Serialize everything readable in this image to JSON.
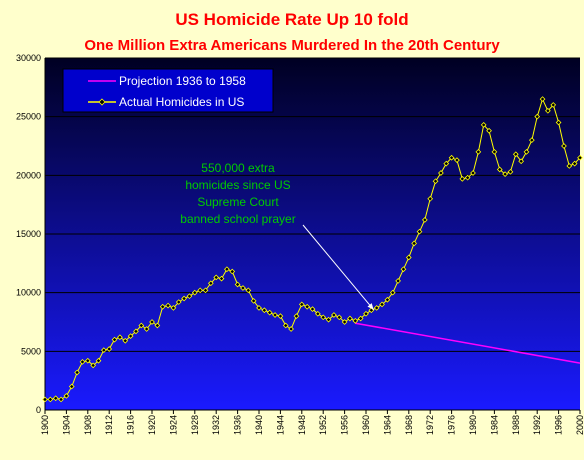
{
  "chart_data": {
    "type": "line",
    "title": "US Homicide Rate Up 10 fold",
    "subtitle": "One Million Extra Americans Murdered In the 20th Century",
    "xlabel": "",
    "ylabel": "",
    "ylim": [
      0,
      30000
    ],
    "yticks": [
      "0",
      "5000",
      "10000",
      "15000",
      "20000",
      "25000",
      "30000"
    ],
    "xticks": [
      "1900",
      "1904",
      "1908",
      "1912",
      "1916",
      "1920",
      "1924",
      "1928",
      "1932",
      "1936",
      "1940",
      "1944",
      "1948",
      "1952",
      "1956",
      "1960",
      "1964",
      "1968",
      "1972",
      "1976",
      "1980",
      "1984",
      "1988",
      "1992",
      "1996",
      "2000"
    ],
    "grid": true,
    "legend_position": "top-left",
    "background_color": "#0000aa",
    "series": [
      {
        "name": "Projection 1936 to 1958",
        "color": "#ff00ff",
        "x": [
          1958,
          2000
        ],
        "y": [
          7400,
          4000
        ]
      },
      {
        "name": "Actual Homicides in US",
        "color": "#ffff00",
        "x": [
          1900,
          1901,
          1902,
          1903,
          1904,
          1905,
          1906,
          1907,
          1908,
          1909,
          1910,
          1911,
          1912,
          1913,
          1914,
          1915,
          1916,
          1917,
          1918,
          1919,
          1920,
          1921,
          1922,
          1923,
          1924,
          1925,
          1926,
          1927,
          1928,
          1929,
          1930,
          1931,
          1932,
          1933,
          1934,
          1935,
          1936,
          1937,
          1938,
          1939,
          1940,
          1941,
          1942,
          1943,
          1944,
          1945,
          1946,
          1947,
          1948,
          1949,
          1950,
          1951,
          1952,
          1953,
          1954,
          1955,
          1956,
          1957,
          1958,
          1959,
          1960,
          1961,
          1962,
          1963,
          1964,
          1965,
          1966,
          1967,
          1968,
          1969,
          1970,
          1971,
          1972,
          1973,
          1974,
          1975,
          1976,
          1977,
          1978,
          1979,
          1980,
          1981,
          1982,
          1983,
          1984,
          1985,
          1986,
          1987,
          1988,
          1989,
          1990,
          1991,
          1992,
          1993,
          1994,
          1995,
          1996,
          1997,
          1998,
          1999,
          2000
        ],
        "y": [
          900,
          900,
          1000,
          900,
          1200,
          2000,
          3200,
          4100,
          4200,
          3800,
          4200,
          5100,
          5200,
          6000,
          6200,
          5900,
          6300,
          6700,
          7200,
          6900,
          7500,
          7200,
          8800,
          8900,
          8700,
          9200,
          9500,
          9700,
          10000,
          10200,
          10200,
          10800,
          11300,
          11200,
          12000,
          11800,
          10700,
          10400,
          10200,
          9300,
          8700,
          8500,
          8300,
          8100,
          8000,
          7200,
          6900,
          8000,
          9000,
          8800,
          8600,
          8200,
          7900,
          7700,
          8100,
          7900,
          7500,
          7800,
          7600,
          7800,
          8200,
          8500,
          8700,
          9000,
          9400,
          10000,
          11000,
          12000,
          13000,
          14200,
          15200,
          16200,
          18000,
          19500,
          20200,
          21000,
          21500,
          21300,
          19700,
          19800,
          20200,
          22000,
          24300,
          23800,
          22000,
          20500,
          20100,
          20300,
          21800,
          21200,
          22000,
          23000,
          25000,
          26500,
          25500,
          26000,
          24500,
          22500,
          20800,
          21000,
          21500
        ]
      }
    ],
    "annotation": {
      "lines": [
        "550,000 extra",
        "homicides since US",
        "Supreme Court",
        "banned school prayer"
      ],
      "color": "#00cc00",
      "points_to": [
        1962,
        8200
      ]
    }
  }
}
